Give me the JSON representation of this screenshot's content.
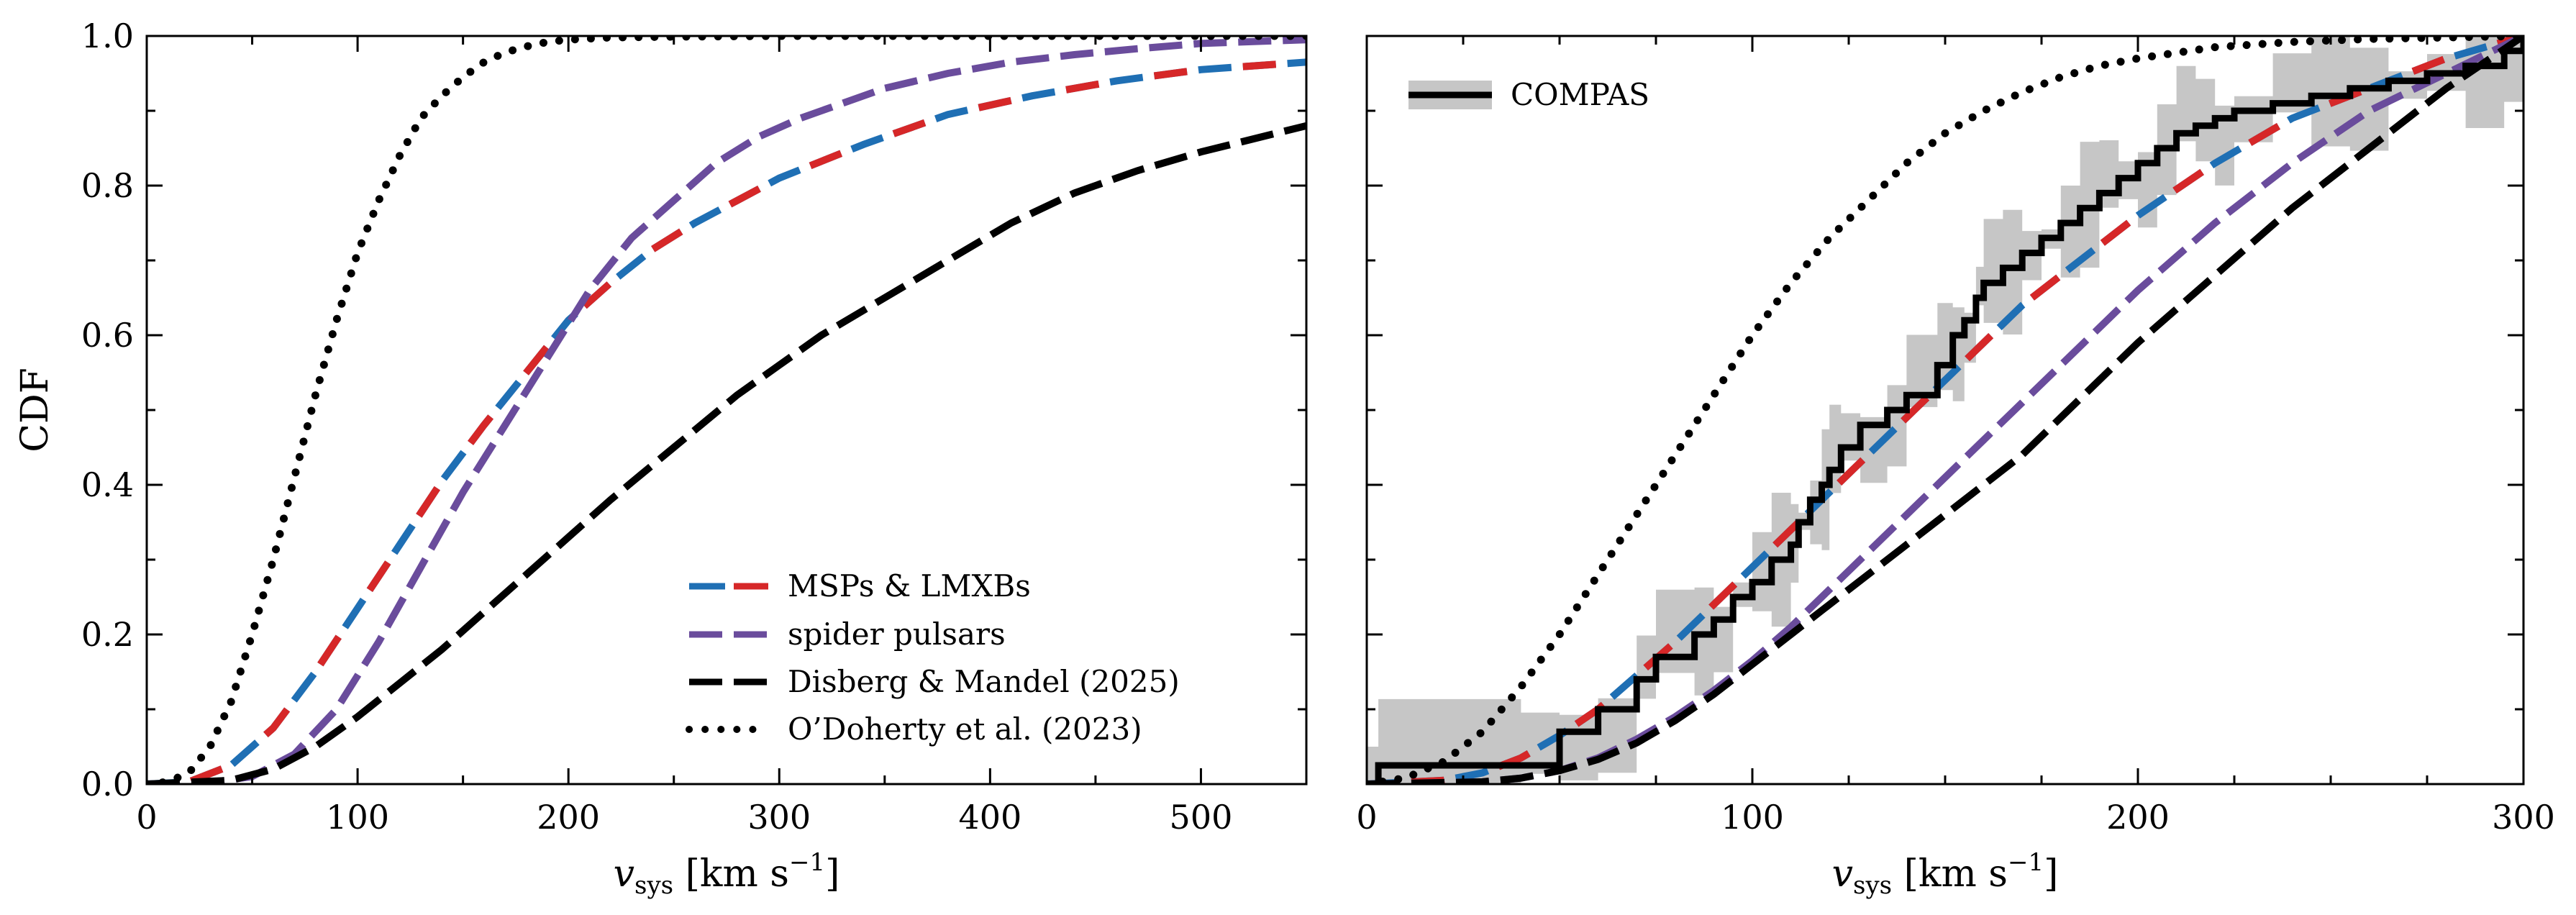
{
  "colors": {
    "msp_a": "#1f6fb4",
    "msp_b": "#d62728",
    "spider": "#6a4c9c",
    "black": "#000000",
    "band": "#c6c6c6"
  },
  "chart_data": [
    {
      "type": "line",
      "panel": "left",
      "xlabel_main": "v",
      "xlabel_sub": "sys",
      "xlabel_unit": "[km s",
      "xlabel_exp": "−1",
      "xlabel_close": "]",
      "ylabel": "CDF",
      "xlim": [
        0,
        550
      ],
      "ylim": [
        0,
        1
      ],
      "xticks": [
        "0",
        "100",
        "200",
        "300",
        "400",
        "500"
      ],
      "xtick_values": [
        0,
        100,
        200,
        300,
        400,
        500
      ],
      "yticks": [
        "0.0",
        "0.2",
        "0.4",
        "0.6",
        "0.8",
        "1.0"
      ],
      "ytick_values": [
        0,
        0.2,
        0.4,
        0.6,
        0.8,
        1.0
      ],
      "legend_position": "lower-right",
      "legend": [
        "MSPs & LMXBs",
        "spider pulsars",
        "Disberg & Mandel (2025)",
        "O’Doherty et al. (2023)"
      ],
      "series": [
        {
          "name": "MSPs & LMXBs",
          "style": "dashed-bicolor",
          "x": [
            0,
            20,
            40,
            60,
            80,
            100,
            120,
            140,
            160,
            180,
            200,
            220,
            240,
            260,
            280,
            300,
            340,
            380,
            420,
            460,
            500,
            550
          ],
          "y": [
            0,
            0.003,
            0.025,
            0.075,
            0.15,
            0.235,
            0.32,
            0.405,
            0.48,
            0.55,
            0.62,
            0.67,
            0.715,
            0.75,
            0.78,
            0.81,
            0.855,
            0.895,
            0.92,
            0.94,
            0.955,
            0.965
          ]
        },
        {
          "name": "spider pulsars",
          "style": "dashed",
          "x": [
            0,
            30,
            50,
            70,
            90,
            110,
            130,
            150,
            170,
            190,
            210,
            230,
            250,
            270,
            290,
            310,
            330,
            350,
            380,
            410,
            440,
            470,
            500,
            550
          ],
          "y": [
            0,
            0.002,
            0.01,
            0.04,
            0.1,
            0.19,
            0.29,
            0.39,
            0.48,
            0.57,
            0.66,
            0.73,
            0.78,
            0.83,
            0.865,
            0.89,
            0.91,
            0.93,
            0.95,
            0.965,
            0.975,
            0.983,
            0.99,
            0.995
          ]
        },
        {
          "name": "Disberg & Mandel (2025)",
          "style": "dashed",
          "x": [
            0,
            40,
            60,
            80,
            100,
            120,
            140,
            160,
            180,
            200,
            220,
            250,
            280,
            300,
            320,
            350,
            380,
            410,
            440,
            470,
            500,
            550
          ],
          "y": [
            0,
            0.005,
            0.02,
            0.05,
            0.09,
            0.135,
            0.18,
            0.23,
            0.28,
            0.33,
            0.38,
            0.45,
            0.52,
            0.56,
            0.6,
            0.65,
            0.7,
            0.75,
            0.79,
            0.82,
            0.845,
            0.88
          ]
        },
        {
          "name": "O’Doherty et al. (2023)",
          "style": "dotted",
          "x": [
            0,
            10,
            20,
            30,
            40,
            50,
            60,
            70,
            80,
            90,
            100,
            110,
            120,
            130,
            140,
            150,
            160,
            170,
            180,
            190,
            200,
            220,
            250,
            300,
            400,
            550
          ],
          "y": [
            0,
            0.003,
            0.015,
            0.05,
            0.11,
            0.2,
            0.3,
            0.41,
            0.52,
            0.62,
            0.71,
            0.78,
            0.84,
            0.89,
            0.92,
            0.945,
            0.965,
            0.978,
            0.986,
            0.992,
            0.995,
            0.998,
            0.999,
            1.0,
            1.0,
            1.0
          ]
        }
      ]
    },
    {
      "type": "line",
      "panel": "right",
      "xlabel_main": "v",
      "xlabel_sub": "sys",
      "xlabel_unit": "[km s",
      "xlabel_exp": "−1",
      "xlabel_close": "]",
      "xlim": [
        0,
        300
      ],
      "ylim": [
        0,
        1
      ],
      "xticks": [
        "0",
        "100",
        "200",
        "300"
      ],
      "xtick_values": [
        0,
        100,
        200,
        300
      ],
      "yticks": [
        "0.0",
        "0.2",
        "0.4",
        "0.6",
        "0.8",
        "1.0"
      ],
      "ytick_values": [
        0,
        0.2,
        0.4,
        0.6,
        0.8,
        1.0
      ],
      "legend_position": "top-left",
      "legend": [
        "COMPAS"
      ],
      "compas_step": {
        "x": [
          0,
          3,
          40,
          50,
          60,
          70,
          75,
          85,
          90,
          95,
          100,
          105,
          110,
          112,
          115,
          118,
          120,
          123,
          128,
          135,
          140,
          148,
          152,
          155,
          158,
          160,
          165,
          170,
          175,
          180,
          185,
          190,
          195,
          200,
          205,
          210,
          215,
          220,
          225,
          235,
          245,
          255,
          265,
          275,
          285,
          295,
          300
        ],
        "y": [
          0,
          0.025,
          0.025,
          0.07,
          0.1,
          0.14,
          0.17,
          0.2,
          0.22,
          0.25,
          0.27,
          0.3,
          0.32,
          0.35,
          0.38,
          0.4,
          0.42,
          0.45,
          0.48,
          0.5,
          0.52,
          0.56,
          0.6,
          0.62,
          0.65,
          0.67,
          0.69,
          0.71,
          0.73,
          0.75,
          0.77,
          0.79,
          0.81,
          0.83,
          0.85,
          0.87,
          0.88,
          0.89,
          0.9,
          0.91,
          0.92,
          0.93,
          0.94,
          0.95,
          0.96,
          0.98,
          1.0
        ]
      },
      "series": [
        {
          "name": "MSPs & LMXBs",
          "style": "dashed-bicolor",
          "x": [
            0,
            20,
            30,
            40,
            50,
            60,
            70,
            80,
            90,
            100,
            110,
            120,
            130,
            140,
            150,
            160,
            170,
            180,
            190,
            200,
            220,
            240,
            260,
            280,
            300
          ],
          "y": [
            0,
            0.005,
            0.015,
            0.035,
            0.065,
            0.1,
            0.145,
            0.19,
            0.24,
            0.29,
            0.34,
            0.39,
            0.44,
            0.49,
            0.54,
            0.59,
            0.64,
            0.68,
            0.72,
            0.76,
            0.83,
            0.89,
            0.93,
            0.97,
            1.0
          ]
        },
        {
          "name": "spider pulsars",
          "style": "dashed",
          "x": [
            0,
            30,
            40,
            50,
            60,
            70,
            80,
            90,
            100,
            110,
            120,
            130,
            140,
            150,
            160,
            170,
            180,
            190,
            200,
            220,
            240,
            260,
            280,
            300
          ],
          "y": [
            0,
            0.003,
            0.008,
            0.018,
            0.035,
            0.06,
            0.09,
            0.125,
            0.165,
            0.21,
            0.26,
            0.31,
            0.36,
            0.41,
            0.46,
            0.51,
            0.56,
            0.61,
            0.66,
            0.75,
            0.83,
            0.9,
            0.95,
            1.0
          ]
        },
        {
          "name": "Disberg & Mandel (2025)",
          "style": "dashed",
          "x": [
            0,
            30,
            40,
            50,
            60,
            70,
            80,
            90,
            100,
            110,
            120,
            130,
            140,
            150,
            160,
            170,
            180,
            190,
            200,
            220,
            240,
            260,
            280,
            300
          ],
          "y": [
            0,
            0.003,
            0.008,
            0.018,
            0.033,
            0.055,
            0.085,
            0.12,
            0.16,
            0.2,
            0.24,
            0.28,
            0.32,
            0.36,
            0.4,
            0.44,
            0.49,
            0.54,
            0.59,
            0.68,
            0.77,
            0.85,
            0.93,
            1.0
          ]
        },
        {
          "name": "O’Doherty et al. (2023)",
          "style": "dotted",
          "x": [
            0,
            10,
            20,
            30,
            40,
            50,
            60,
            70,
            80,
            90,
            100,
            110,
            120,
            130,
            140,
            150,
            160,
            170,
            180,
            190,
            200,
            220,
            240,
            260,
            280,
            300
          ],
          "y": [
            0,
            0.008,
            0.03,
            0.07,
            0.13,
            0.2,
            0.28,
            0.36,
            0.44,
            0.52,
            0.6,
            0.67,
            0.73,
            0.78,
            0.83,
            0.87,
            0.9,
            0.925,
            0.945,
            0.96,
            0.97,
            0.985,
            0.992,
            0.996,
            0.998,
            1.0
          ]
        }
      ]
    }
  ]
}
